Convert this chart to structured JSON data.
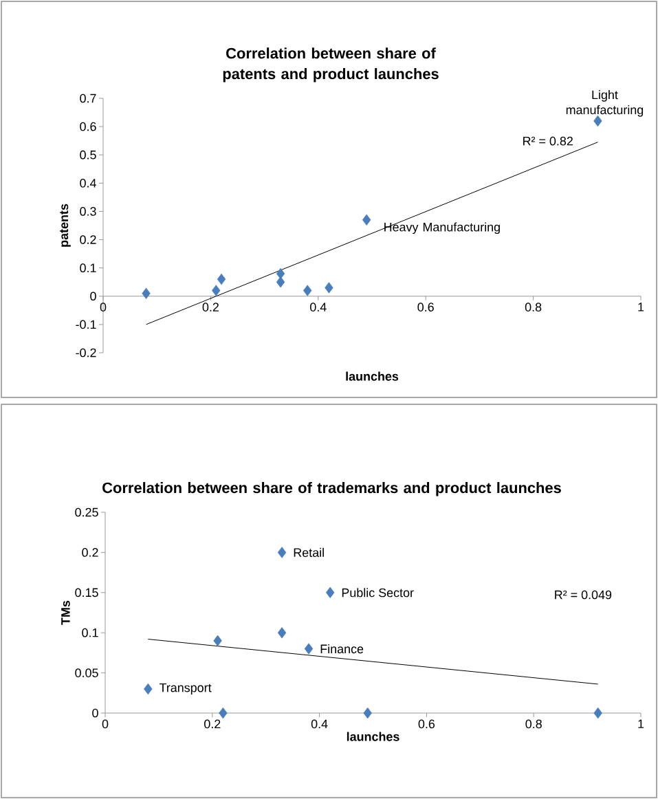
{
  "chart_data": [
    {
      "type": "scatter",
      "title": "Correlation between share of patents and product launches",
      "xlabel": "launches",
      "ylabel": "patents",
      "xlim": [
        0,
        1
      ],
      "xticks": [
        0,
        0.2,
        0.4,
        0.6,
        0.8,
        1
      ],
      "ylim": [
        -0.2,
        0.7
      ],
      "yticks": [
        -0.2,
        -0.1,
        0,
        0.1,
        0.2,
        0.3,
        0.4,
        0.5,
        0.6,
        0.7
      ],
      "series": [
        {
          "type": "scatter",
          "marker": "diamond",
          "color": "#4a7ebb",
          "x": [
            0.08,
            0.21,
            0.22,
            0.33,
            0.33,
            0.38,
            0.42,
            0.49,
            0.92
          ],
          "values": [
            0.01,
            0.02,
            0.06,
            0.08,
            0.05,
            0.02,
            0.03,
            0.27,
            0.62
          ]
        },
        {
          "type": "line",
          "marker": "none",
          "color": "#000000",
          "x": [
            0.08,
            0.92
          ],
          "values": [
            -0.1,
            0.545
          ]
        }
      ],
      "annotations": [
        {
          "text": "Light manufacturing",
          "x": 0.92,
          "y": 0.62
        },
        {
          "text": "Heavy Manufacturing",
          "x": 0.49,
          "y": 0.27
        },
        "R² = 0.82"
      ]
    },
    {
      "type": "scatter",
      "title": "Correlation between share of trademarks and product launches",
      "xlabel": "launches",
      "ylabel": "TMs",
      "xlim": [
        0,
        1
      ],
      "xticks": [
        0,
        0.2,
        0.4,
        0.6,
        0.8,
        1
      ],
      "ylim": [
        0,
        0.25
      ],
      "yticks": [
        0,
        0.05,
        0.1,
        0.15,
        0.2,
        0.25
      ],
      "series": [
        {
          "type": "scatter",
          "marker": "diamond",
          "color": "#4a7ebb",
          "x": [
            0.08,
            0.21,
            0.22,
            0.33,
            0.33,
            0.38,
            0.42,
            0.49,
            0.92
          ],
          "values": [
            0.03,
            0.09,
            0,
            0.2,
            0.1,
            0.08,
            0.15,
            0,
            0
          ]
        },
        {
          "type": "line",
          "marker": "none",
          "color": "#000000",
          "x": [
            0.08,
            0.92
          ],
          "values": [
            0.092,
            0.036
          ]
        }
      ],
      "annotations": [
        {
          "text": "Retail",
          "x": 0.33,
          "y": 0.2
        },
        {
          "text": "Public Sector",
          "x": 0.42,
          "y": 0.15
        },
        {
          "text": "Finance",
          "x": 0.38,
          "y": 0.08
        },
        {
          "text": "Transport",
          "x": 0.08,
          "y": 0.03
        },
        "R² = 0.049"
      ]
    }
  ]
}
